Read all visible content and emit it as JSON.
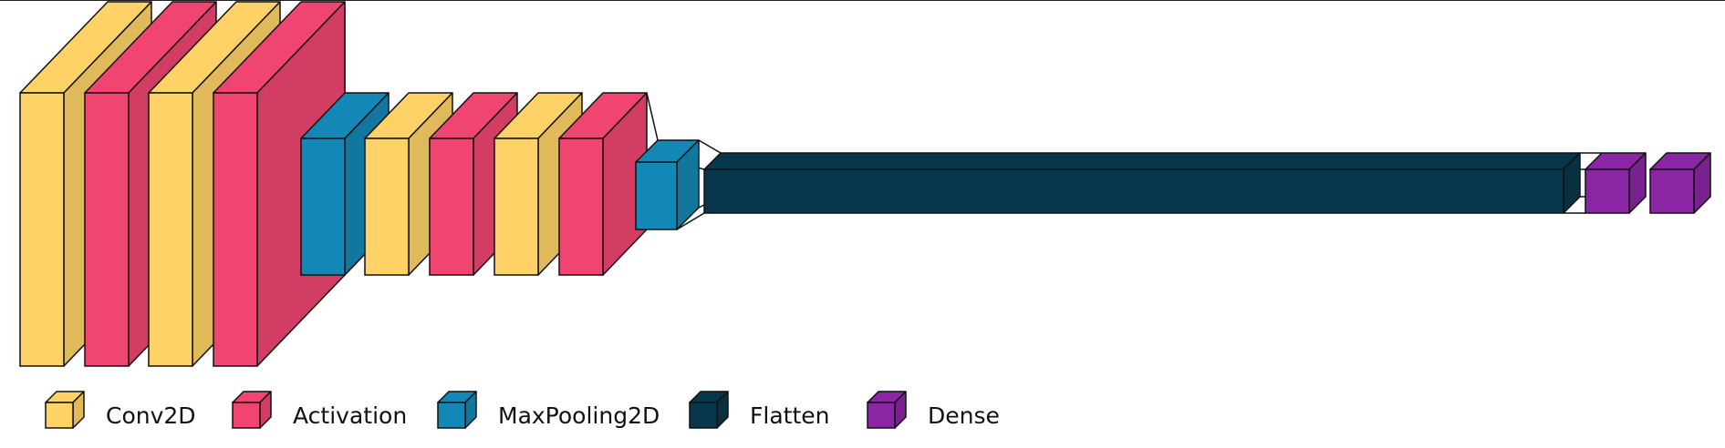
{
  "legend": [
    {
      "label": "Conv2D",
      "color": "#FED267"
    },
    {
      "label": "Activation",
      "color": "#EF4570"
    },
    {
      "label": "MaxPooling2D",
      "color": "#1387B5"
    },
    {
      "label": "Flatten",
      "color": "#08364A"
    },
    {
      "label": "Dense",
      "color": "#8A25A3"
    }
  ],
  "layers": [
    {
      "type": "Conv2D",
      "color": "#FED267"
    },
    {
      "type": "Activation",
      "color": "#EF4570"
    },
    {
      "type": "Conv2D",
      "color": "#FED267"
    },
    {
      "type": "Activation",
      "color": "#EF4570"
    },
    {
      "type": "MaxPooling2D",
      "color": "#1387B5"
    },
    {
      "type": "Conv2D",
      "color": "#FED267"
    },
    {
      "type": "Activation",
      "color": "#EF4570"
    },
    {
      "type": "Conv2D",
      "color": "#FED267"
    },
    {
      "type": "Activation",
      "color": "#EF4570"
    },
    {
      "type": "MaxPooling2D",
      "color": "#1387B5"
    },
    {
      "type": "Flatten",
      "color": "#08364A"
    },
    {
      "type": "Dense",
      "color": "#8A25A3"
    },
    {
      "type": "Dense",
      "color": "#8A25A3"
    }
  ]
}
